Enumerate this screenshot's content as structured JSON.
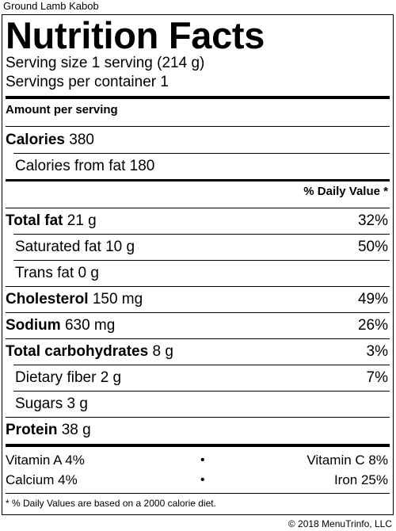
{
  "item_title": "Ground Lamb Kabob",
  "label_title": "Nutrition Facts",
  "serving_size": "Serving size 1 serving (214 g)",
  "servings_per_container": "Servings per container 1",
  "amount_per_serving": "Amount per serving",
  "calories": {
    "label": "Calories",
    "value": "380"
  },
  "calories_from_fat": {
    "label": "Calories from fat",
    "value": "180"
  },
  "daily_value_header": "% Daily Value *",
  "nutrients": [
    {
      "label": "Total fat",
      "amount": "21 g",
      "dv": "32%"
    },
    {
      "label": "Saturated fat",
      "amount": "10 g",
      "dv": "50%"
    },
    {
      "label": "Trans fat",
      "amount": "0 g",
      "dv": ""
    },
    {
      "label": "Cholesterol",
      "amount": "150 mg",
      "dv": "49%"
    },
    {
      "label": "Sodium",
      "amount": "630 mg",
      "dv": "26%"
    },
    {
      "label": "Total carbohydrates",
      "amount": "8 g",
      "dv": "3%"
    },
    {
      "label": "Dietary fiber",
      "amount": "2 g",
      "dv": "7%"
    },
    {
      "label": "Sugars",
      "amount": "3 g",
      "dv": ""
    },
    {
      "label": "Protein",
      "amount": "38 g",
      "dv": ""
    }
  ],
  "vitamins": [
    {
      "left": "Vitamin A 4%",
      "right": "Vitamin C 8%"
    },
    {
      "left": "Calcium 4%",
      "right": "Iron 25%"
    }
  ],
  "bullet": "•",
  "footnote": "* % Daily Values are based on a 2000 calorie diet.",
  "copyright": "© 2018 MenuTrinfo, LLC"
}
